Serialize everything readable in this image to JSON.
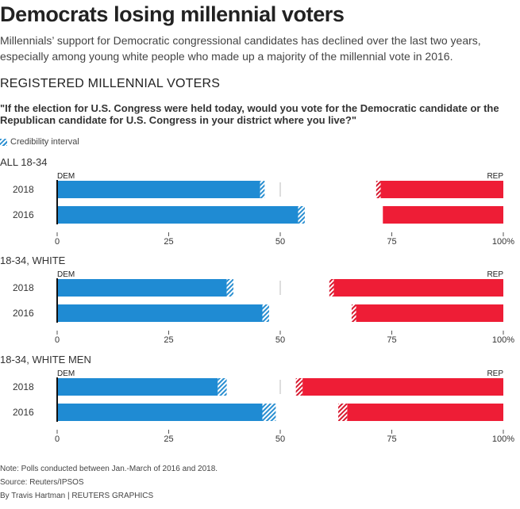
{
  "title": "Democrats losing millennial voters",
  "subtitle": "Millennials’ support for Democratic congressional candidates has declined over the last two years, especially among young white people who made up a majority of the millennial vote in 2016.",
  "section_heading": "REGISTERED MILLENNIAL VOTERS",
  "question": "\"If the election for U.S. Congress were held today, would you vote for the Democratic candidate or the Republican candidate for U.S. Congress in your district where you live?\"",
  "legend_label": "Credibility interval",
  "colors": {
    "dem": "#1f8bd3",
    "rep": "#ee1d36",
    "interval_dem": "#2a8fd1",
    "interval_rep": "#d7192f"
  },
  "chart_data": [
    {
      "type": "bar",
      "title": "ALL 18-34",
      "left_label": "DEM",
      "right_label": "REP",
      "categories": [
        "2018",
        "2016"
      ],
      "dem": [
        {
          "year": "2018",
          "value": 46,
          "interval_low": 45.5,
          "interval_high": 46.5
        },
        {
          "year": "2016",
          "value": 54.5,
          "interval_low": 54,
          "interval_high": 55.5
        }
      ],
      "rep_from": [
        {
          "year": "2018",
          "value": 72.5,
          "interval_low": 71.5,
          "interval_high": 72.5
        },
        {
          "year": "2016",
          "value": 73,
          "interval_low": 73,
          "interval_high": 73
        }
      ],
      "xlim": [
        0,
        100
      ],
      "ticks": [
        "0",
        "25",
        "50",
        "75",
        "100%"
      ]
    },
    {
      "type": "bar",
      "title": "18-34, WHITE",
      "left_label": "DEM",
      "right_label": "REP",
      "categories": [
        "2018",
        "2016"
      ],
      "dem": [
        {
          "year": "2018",
          "value": 39,
          "interval_low": 38,
          "interval_high": 39.5
        },
        {
          "year": "2016",
          "value": 47,
          "interval_low": 46,
          "interval_high": 47.5
        }
      ],
      "rep_from": [
        {
          "year": "2018",
          "value": 62,
          "interval_low": 61,
          "interval_high": 62
        },
        {
          "year": "2016",
          "value": 67,
          "interval_low": 66,
          "interval_high": 67
        }
      ],
      "xlim": [
        0,
        100
      ],
      "ticks": [
        "0",
        "25",
        "50",
        "75",
        "100%"
      ]
    },
    {
      "type": "bar",
      "title": "18-34, WHITE MEN",
      "left_label": "DEM",
      "right_label": "REP",
      "categories": [
        "2018",
        "2016"
      ],
      "dem": [
        {
          "year": "2018",
          "value": 37,
          "interval_low": 36,
          "interval_high": 38
        },
        {
          "year": "2016",
          "value": 47,
          "interval_low": 46,
          "interval_high": 49
        }
      ],
      "rep_from": [
        {
          "year": "2018",
          "value": 55,
          "interval_low": 53.5,
          "interval_high": 55
        },
        {
          "year": "2016",
          "value": 65,
          "interval_low": 63,
          "interval_high": 65
        }
      ],
      "xlim": [
        0,
        100
      ],
      "ticks": [
        "0",
        "25",
        "50",
        "75",
        "100%"
      ]
    }
  ],
  "footer": {
    "note": "Note: Polls conducted between Jan.-March of 2016 and 2018.",
    "source": "Source: Reuters/IPSOS",
    "credit": "By Travis Hartman | REUTERS GRAPHICS"
  }
}
